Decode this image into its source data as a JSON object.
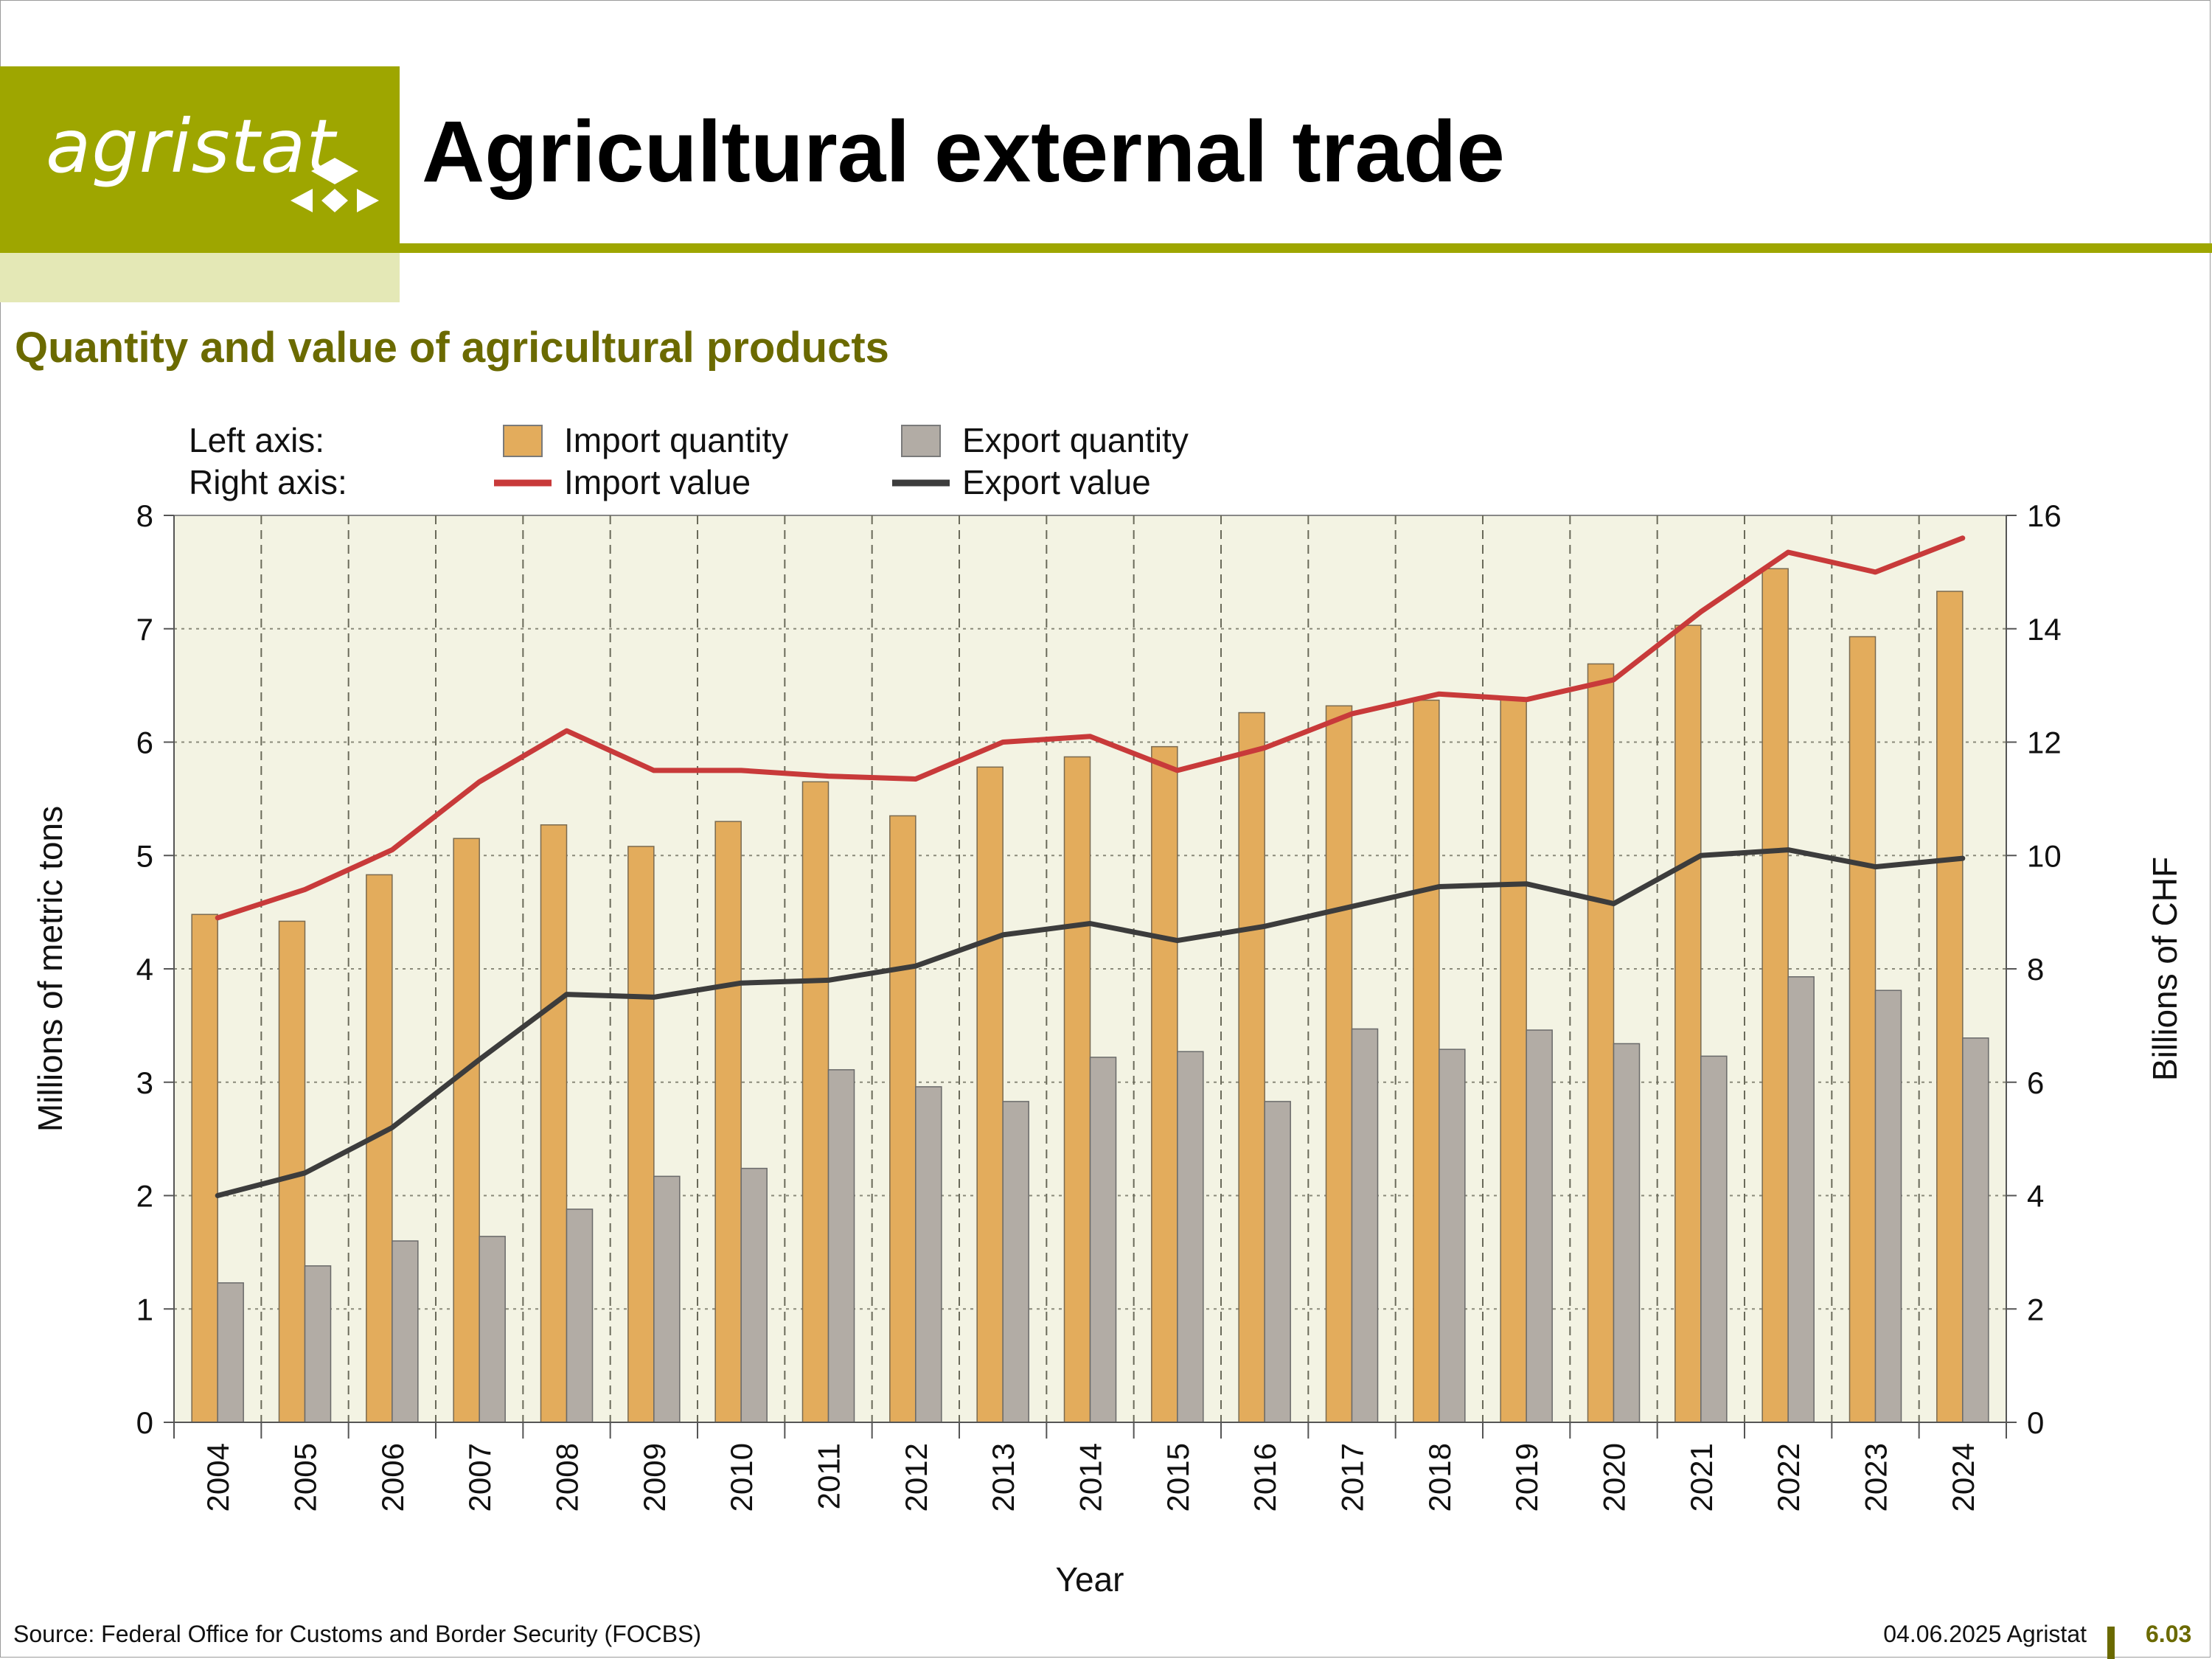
{
  "header": {
    "logo_text": "agristat",
    "title": "Agricultural external trade"
  },
  "subtitle": "Quantity and value of agricultural products",
  "legend": {
    "left_axis_label": "Left axis:",
    "right_axis_label": "Right axis:",
    "import_quantity": "Import quantity",
    "export_quantity": "Export quantity",
    "import_value": "Import value",
    "export_value": "Export value"
  },
  "footer": {
    "source": "Source: Federal Office for Customs and Border Security (FOCBS)",
    "date": "04.06.2025 Agristat",
    "page_number": "6.03"
  },
  "colors": {
    "import_bar": "#e3ac5c",
    "export_bar": "#b2aca5",
    "import_line": "#c83a3a",
    "export_line": "#3c3c3c",
    "plot_bg": "#f3f3e3",
    "brand_green": "#9ea600"
  },
  "chart_data": {
    "type": "bar",
    "xlabel": "Year",
    "ylabel_left": "Millions of metric tons",
    "ylabel_right": "Billions of CHF",
    "ylim_left": [
      0,
      8
    ],
    "ylim_right": [
      0,
      16
    ],
    "yticks_left": [
      "0",
      "1",
      "2",
      "3",
      "4",
      "5",
      "6",
      "7",
      "8"
    ],
    "yticks_right": [
      "0",
      "2",
      "4",
      "6",
      "8",
      "10",
      "12",
      "14",
      "16"
    ],
    "grid": true,
    "legend_position": "top",
    "categories": [
      "2004",
      "2005",
      "2006",
      "2007",
      "2008",
      "2009",
      "2010",
      "2011",
      "2012",
      "2013",
      "2014",
      "2015",
      "2016",
      "2017",
      "2018",
      "2019",
      "2020",
      "2021",
      "2022",
      "2023",
      "2024"
    ],
    "series": [
      {
        "name": "Import quantity",
        "type": "bar",
        "axis": "left",
        "values": [
          4.48,
          4.42,
          4.83,
          5.15,
          5.27,
          5.08,
          5.3,
          5.65,
          5.35,
          5.78,
          5.87,
          5.96,
          6.26,
          6.32,
          6.37,
          6.38,
          6.69,
          7.03,
          7.53,
          6.93,
          7.33
        ]
      },
      {
        "name": "Export quantity",
        "type": "bar",
        "axis": "left",
        "values": [
          1.23,
          1.38,
          1.6,
          1.64,
          1.88,
          2.17,
          2.24,
          3.11,
          2.96,
          2.83,
          3.22,
          3.27,
          2.83,
          3.47,
          3.29,
          3.46,
          3.34,
          3.23,
          3.93,
          3.81,
          3.39
        ]
      },
      {
        "name": "Import value",
        "type": "line",
        "axis": "right",
        "values": [
          8.9,
          9.4,
          10.1,
          11.3,
          12.2,
          11.5,
          11.5,
          11.4,
          11.35,
          12.0,
          12.1,
          11.5,
          11.9,
          12.5,
          12.85,
          12.75,
          13.1,
          14.3,
          15.35,
          15.0,
          15.6
        ]
      },
      {
        "name": "Export value",
        "type": "line",
        "axis": "right",
        "values": [
          4.0,
          4.4,
          5.2,
          6.4,
          7.55,
          7.5,
          7.75,
          7.8,
          8.05,
          8.6,
          8.8,
          8.5,
          8.75,
          9.1,
          9.45,
          9.5,
          9.15,
          10.0,
          10.1,
          9.8,
          9.95
        ]
      }
    ]
  }
}
